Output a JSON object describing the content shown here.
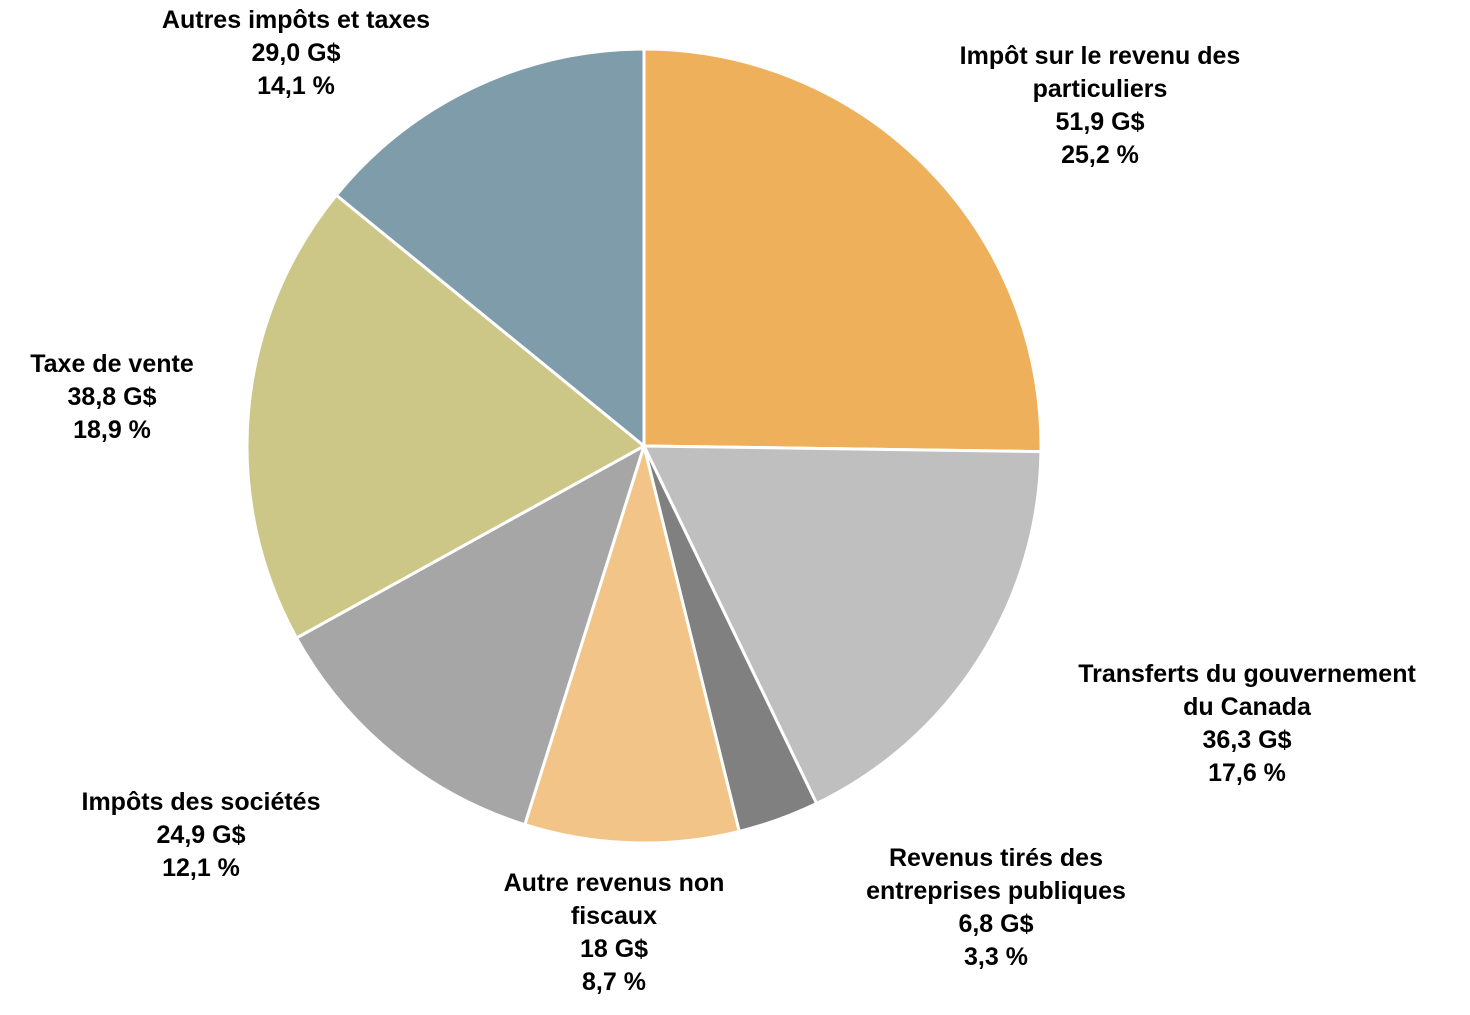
{
  "chart_data": {
    "type": "pie",
    "title": "",
    "start_angle_deg": 0,
    "direction": "clockwise",
    "slices": [
      {
        "label": "Impôt sur le revenu des particuliers",
        "label_lines": [
          "Impôt sur le revenu des",
          "particuliers"
        ],
        "amount": "51,9 G$",
        "percent_text": "25,2 %",
        "value": 25.2,
        "color": "#EEB05A"
      },
      {
        "label": "Transferts du gouvernement du Canada",
        "label_lines": [
          "Transferts du gouvernement",
          "du Canada"
        ],
        "amount": "36,3 G$",
        "percent_text": "17,6 %",
        "value": 17.6,
        "color": "#BFBFBF"
      },
      {
        "label": "Revenus  tirés des entreprises publiques",
        "label_lines": [
          "Revenus  tirés des",
          "entreprises publiques"
        ],
        "amount": "6,8 G$",
        "percent_text": "3,3 %",
        "value": 3.3,
        "color": "#808080"
      },
      {
        "label": "Autre revenus non fiscaux",
        "label_lines": [
          "Autre revenus non",
          "fiscaux"
        ],
        "amount": "18 G$",
        "percent_text": "8,7 %",
        "value": 8.7,
        "color": "#F2C488"
      },
      {
        "label": "Impôts des sociétés",
        "label_lines": [
          "Impôts des sociétés"
        ],
        "amount": "24,9 G$",
        "percent_text": "12,1 %",
        "value": 12.1,
        "color": "#A6A6A6"
      },
      {
        "label": "Taxe de vente",
        "label_lines": [
          "Taxe de vente"
        ],
        "amount": "38,8 G$",
        "percent_text": "18,9 %",
        "value": 18.9,
        "color": "#CDC787"
      },
      {
        "label": "Autres impôts et taxes",
        "label_lines": [
          "Autres impôts et taxes"
        ],
        "amount": "29,0 G$",
        "percent_text": "14,1 %",
        "value": 14.1,
        "color": "#7F9CAA"
      }
    ]
  }
}
